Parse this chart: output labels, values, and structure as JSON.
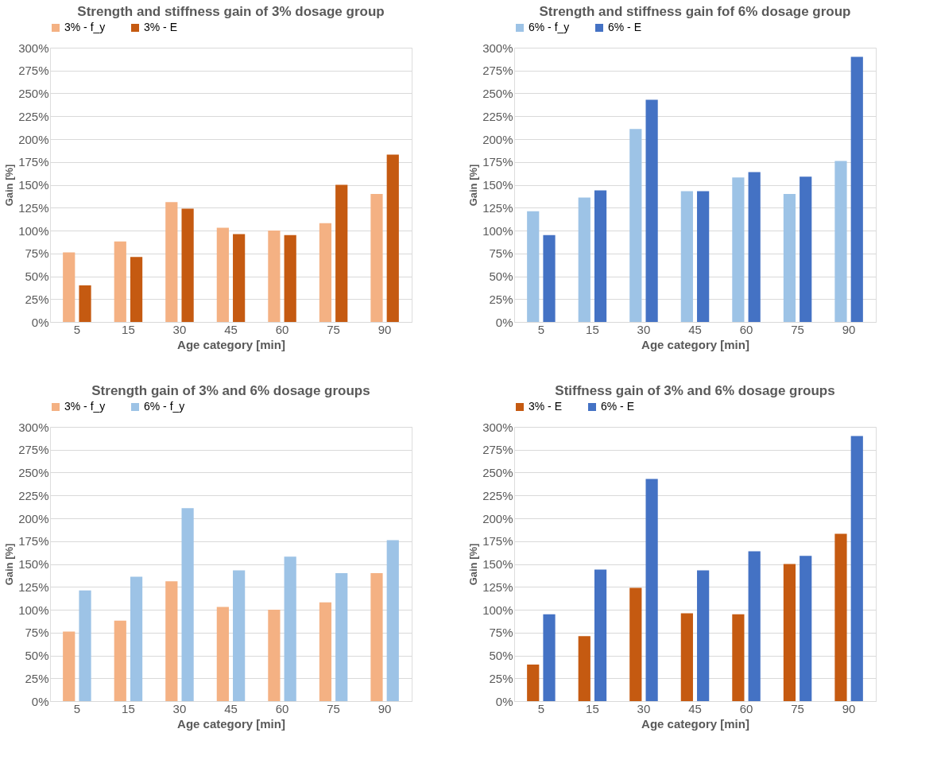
{
  "chart_data": [
    {
      "type": "bar",
      "title": "Strength and stiffness gain of 3% dosage group",
      "xlabel": "Age category [min]",
      "ylabel": "Gain [%]",
      "categories": [
        "5",
        "15",
        "30",
        "45",
        "60",
        "75",
        "90"
      ],
      "ylim": [
        0,
        300
      ],
      "yticks": [
        {
          "value": 0,
          "label": "0%"
        },
        {
          "value": 25,
          "label": "25%"
        },
        {
          "value": 50,
          "label": "50%"
        },
        {
          "value": 75,
          "label": "75%"
        },
        {
          "value": 100,
          "label": "100%"
        },
        {
          "value": 125,
          "label": "125%"
        },
        {
          "value": 150,
          "label": "150%"
        },
        {
          "value": 175,
          "label": "175%"
        },
        {
          "value": 200,
          "label": "200%"
        },
        {
          "value": 225,
          "label": "225%"
        },
        {
          "value": 250,
          "label": "250%"
        },
        {
          "value": 275,
          "label": "275%"
        },
        {
          "value": 300,
          "label": "300%"
        }
      ],
      "grid": "y",
      "legend": "top",
      "series": [
        {
          "name": "3% - f_y",
          "color": "#f4b183",
          "values": [
            76,
            88,
            131,
            103,
            100,
            108,
            140
          ]
        },
        {
          "name": "3% - E",
          "color": "#c55a11",
          "values": [
            40,
            71,
            124,
            96,
            95,
            150,
            183
          ]
        }
      ]
    },
    {
      "type": "bar",
      "title": "Strength and stiffness gain fof 6% dosage group",
      "xlabel": "Age category [min]",
      "ylabel": "Gain [%]",
      "categories": [
        "5",
        "15",
        "30",
        "45",
        "60",
        "75",
        "90"
      ],
      "ylim": [
        0,
        300
      ],
      "yticks": [
        {
          "value": 0,
          "label": "0%"
        },
        {
          "value": 25,
          "label": "25%"
        },
        {
          "value": 50,
          "label": "50%"
        },
        {
          "value": 75,
          "label": "75%"
        },
        {
          "value": 100,
          "label": "100%"
        },
        {
          "value": 125,
          "label": "125%"
        },
        {
          "value": 150,
          "label": "150%"
        },
        {
          "value": 175,
          "label": "175%"
        },
        {
          "value": 200,
          "label": "200%"
        },
        {
          "value": 225,
          "label": "225%"
        },
        {
          "value": 250,
          "label": "250%"
        },
        {
          "value": 275,
          "label": "275%"
        },
        {
          "value": 300,
          "label": "300%"
        }
      ],
      "grid": "y",
      "legend": "top",
      "series": [
        {
          "name": "6% - f_y",
          "color": "#9dc3e6",
          "values": [
            121,
            136,
            211,
            143,
            158,
            140,
            176
          ]
        },
        {
          "name": "6% - E",
          "color": "#4472c4",
          "values": [
            95,
            144,
            243,
            143,
            164,
            159,
            290
          ]
        }
      ]
    },
    {
      "type": "bar",
      "title": "Strength gain of 3% and 6% dosage groups",
      "xlabel": "Age category [min]",
      "ylabel": "Gain [%]",
      "categories": [
        "5",
        "15",
        "30",
        "45",
        "60",
        "75",
        "90"
      ],
      "ylim": [
        0,
        300
      ],
      "yticks": [
        {
          "value": 0,
          "label": "0%"
        },
        {
          "value": 25,
          "label": "25%"
        },
        {
          "value": 50,
          "label": "50%"
        },
        {
          "value": 75,
          "label": "75%"
        },
        {
          "value": 100,
          "label": "100%"
        },
        {
          "value": 125,
          "label": "125%"
        },
        {
          "value": 150,
          "label": "150%"
        },
        {
          "value": 175,
          "label": "175%"
        },
        {
          "value": 200,
          "label": "200%"
        },
        {
          "value": 225,
          "label": "225%"
        },
        {
          "value": 250,
          "label": "250%"
        },
        {
          "value": 275,
          "label": "275%"
        },
        {
          "value": 300,
          "label": "300%"
        }
      ],
      "grid": "y",
      "legend": "top",
      "series": [
        {
          "name": "3% - f_y",
          "color": "#f4b183",
          "values": [
            76,
            88,
            131,
            103,
            100,
            108,
            140
          ]
        },
        {
          "name": "6% - f_y",
          "color": "#9dc3e6",
          "values": [
            121,
            136,
            211,
            143,
            158,
            140,
            176
          ]
        }
      ]
    },
    {
      "type": "bar",
      "title": "Stiffness gain of 3% and 6% dosage groups",
      "xlabel": "Age category [min]",
      "ylabel": "Gain [%]",
      "categories": [
        "5",
        "15",
        "30",
        "45",
        "60",
        "75",
        "90"
      ],
      "ylim": [
        0,
        300
      ],
      "yticks": [
        {
          "value": 0,
          "label": "0%"
        },
        {
          "value": 25,
          "label": "25%"
        },
        {
          "value": 50,
          "label": "50%"
        },
        {
          "value": 75,
          "label": "75%"
        },
        {
          "value": 100,
          "label": "100%"
        },
        {
          "value": 125,
          "label": "125%"
        },
        {
          "value": 150,
          "label": "150%"
        },
        {
          "value": 175,
          "label": "175%"
        },
        {
          "value": 200,
          "label": "200%"
        },
        {
          "value": 225,
          "label": "225%"
        },
        {
          "value": 250,
          "label": "250%"
        },
        {
          "value": 275,
          "label": "275%"
        },
        {
          "value": 300,
          "label": "300%"
        }
      ],
      "grid": "y",
      "legend": "top",
      "series": [
        {
          "name": "3% - E",
          "color": "#c55a11",
          "values": [
            40,
            71,
            124,
            96,
            95,
            150,
            183
          ]
        },
        {
          "name": "6% - E",
          "color": "#4472c4",
          "values": [
            95,
            144,
            243,
            143,
            164,
            159,
            290
          ]
        }
      ]
    }
  ]
}
